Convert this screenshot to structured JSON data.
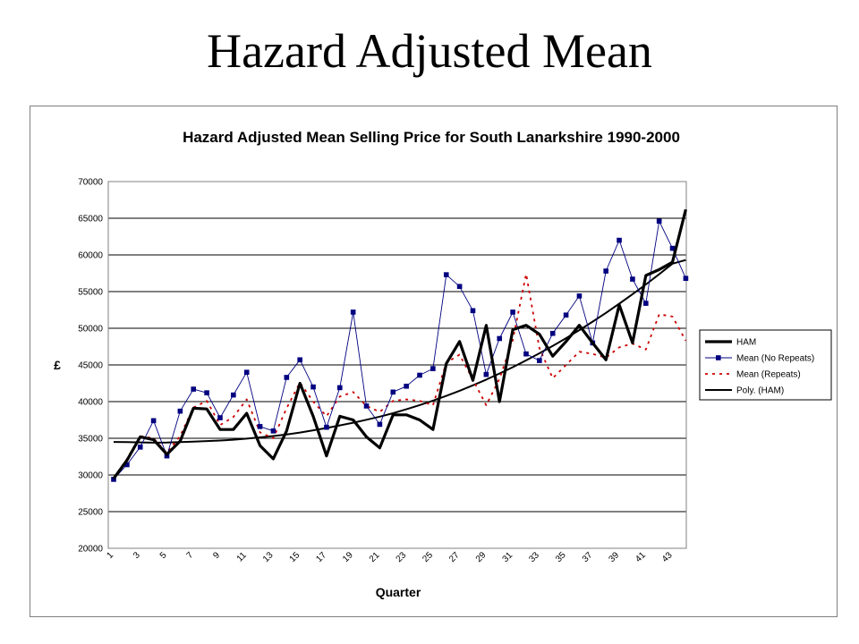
{
  "slide": {
    "title": "Hazard Adjusted Mean"
  },
  "chart_data": {
    "type": "line",
    "title": "Hazard Adjusted Mean Selling Price for South Lanarkshire 1990-2000",
    "xlabel": "Quarter",
    "ylabel": "£",
    "ylim": [
      20000,
      70000
    ],
    "yticks": [
      20000,
      25000,
      30000,
      35000,
      40000,
      45000,
      50000,
      55000,
      60000,
      65000,
      70000
    ],
    "xticks": [
      "1",
      "3",
      "5",
      "7",
      "9",
      "11",
      "13",
      "15",
      "17",
      "19",
      "21",
      "23",
      "25",
      "27",
      "29",
      "31",
      "33",
      "35",
      "37",
      "39",
      "41",
      "43"
    ],
    "grid": "horizontal",
    "legend_position": "right",
    "x": [
      1,
      2,
      3,
      4,
      5,
      6,
      7,
      8,
      9,
      10,
      11,
      12,
      13,
      14,
      15,
      16,
      17,
      18,
      19,
      20,
      21,
      22,
      23,
      24,
      25,
      26,
      27,
      28,
      29,
      30,
      31,
      32,
      33,
      34,
      35,
      36,
      37,
      38,
      39,
      40,
      41,
      42,
      43,
      44
    ],
    "series": [
      {
        "name": "HAM",
        "color": "#000000",
        "values": [
          29500,
          32000,
          35200,
          34800,
          32800,
          34600,
          39100,
          39000,
          36200,
          36200,
          38400,
          34000,
          32200,
          36000,
          42500,
          38000,
          32600,
          38000,
          37500,
          35200,
          33700,
          38200,
          38200,
          37500,
          36200,
          45200,
          48200,
          42900,
          50400,
          40000,
          49800,
          50400,
          49200,
          46200,
          48200,
          50400,
          48000,
          45700,
          53200,
          48000,
          57200,
          58000,
          59000,
          66200
        ]
      },
      {
        "name": "Mean (No Repeats)",
        "color": "#000080",
        "values": [
          29400,
          31400,
          33800,
          37400,
          32600,
          38700,
          41700,
          41200,
          37800,
          40900,
          44000,
          36600,
          36000,
          43300,
          45700,
          42000,
          36500,
          41900,
          52200,
          39400,
          36900,
          41300,
          42100,
          43600,
          44500,
          57300,
          55700,
          52400,
          43700,
          48600,
          52200,
          46500,
          45600,
          49300,
          51800,
          54400,
          48000,
          57800,
          62000,
          56700,
          53400,
          64600,
          60900,
          56800
        ]
      },
      {
        "name": "Mean (Repeats)",
        "color": "#cc0000",
        "values": [
          29600,
          32200,
          35300,
          35000,
          33000,
          35300,
          39200,
          40100,
          36800,
          37900,
          40300,
          35800,
          35000,
          39100,
          42600,
          40000,
          38000,
          40700,
          41300,
          39400,
          38600,
          40100,
          40300,
          40100,
          39500,
          45300,
          46400,
          43000,
          39500,
          43100,
          48400,
          57400,
          47300,
          43200,
          45000,
          46800,
          46500,
          46000,
          47400,
          47900,
          47100,
          51900,
          51600,
          48300
        ]
      },
      {
        "name": "Poly. (HAM)",
        "color": "#000000",
        "values": [
          34500,
          34480,
          34440,
          34400,
          34420,
          34480,
          34550,
          34620,
          34700,
          34800,
          34950,
          35120,
          35300,
          35520,
          35780,
          36080,
          36400,
          36750,
          37120,
          37520,
          37950,
          38420,
          38950,
          39520,
          40130,
          40780,
          41480,
          42220,
          43000,
          43830,
          44700,
          45620,
          46580,
          47590,
          48650,
          49750,
          50900,
          52100,
          53350,
          54650,
          55980,
          57370,
          58800,
          59300
        ]
      }
    ]
  },
  "legend": {
    "items": [
      "HAM",
      "Mean (No Repeats)",
      "Mean (Repeats)",
      "Poly. (HAM)"
    ]
  }
}
